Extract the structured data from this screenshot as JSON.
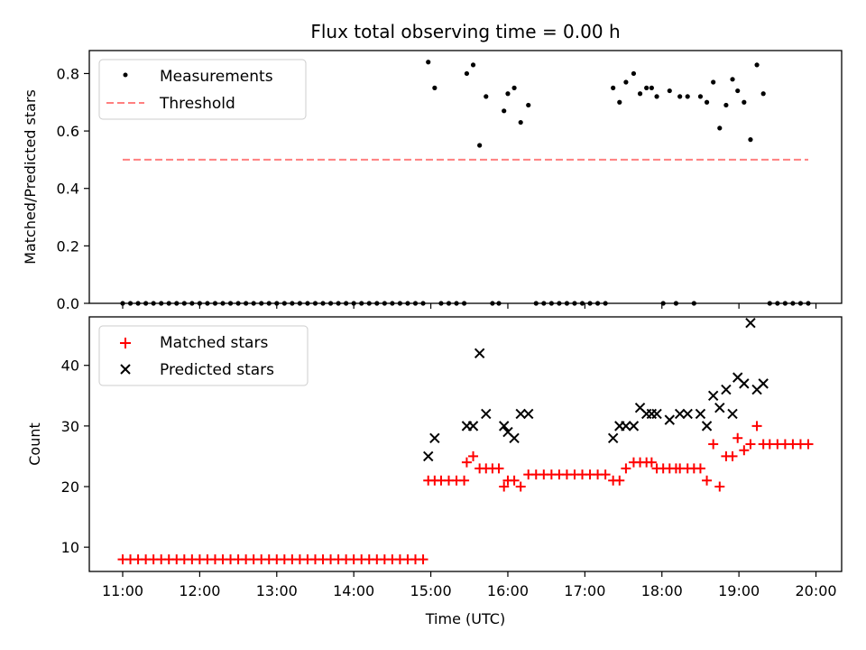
{
  "chart_data": [
    {
      "type": "scatter",
      "title": "Flux total observing time = 0.00 h",
      "xlabel": "",
      "ylabel": "Matched/Predicted stars",
      "xlim": [
        "10:34",
        "20:20"
      ],
      "ylim": [
        0.0,
        0.88
      ],
      "yticks": [
        0.0,
        0.2,
        0.4,
        0.6,
        0.8
      ],
      "ytick_labels": [
        "0.0",
        "0.2",
        "0.4",
        "0.6",
        "0.8"
      ],
      "xticks": [
        "11:00",
        "12:00",
        "13:00",
        "14:00",
        "15:00",
        "16:00",
        "17:00",
        "18:00",
        "19:00",
        "20:00"
      ],
      "grid": false,
      "legend": {
        "position": "top-left",
        "entries": [
          "Measurements",
          "Threshold"
        ]
      },
      "threshold": {
        "name": "Threshold",
        "value": 0.5,
        "x_range": [
          "11:00",
          "19:54"
        ],
        "color": "#ff7f7f"
      },
      "series": [
        {
          "name": "Measurements",
          "color": "#000000",
          "points": [
            [
              "11:00",
              0
            ],
            [
              "11:06",
              0
            ],
            [
              "11:12",
              0
            ],
            [
              "11:18",
              0
            ],
            [
              "11:24",
              0
            ],
            [
              "11:30",
              0
            ],
            [
              "11:36",
              0
            ],
            [
              "11:42",
              0
            ],
            [
              "11:48",
              0
            ],
            [
              "11:54",
              0
            ],
            [
              "12:00",
              0
            ],
            [
              "12:06",
              0
            ],
            [
              "12:12",
              0
            ],
            [
              "12:18",
              0
            ],
            [
              "12:24",
              0
            ],
            [
              "12:30",
              0
            ],
            [
              "12:36",
              0
            ],
            [
              "12:42",
              0
            ],
            [
              "12:48",
              0
            ],
            [
              "12:54",
              0
            ],
            [
              "13:00",
              0
            ],
            [
              "13:06",
              0
            ],
            [
              "13:12",
              0
            ],
            [
              "13:18",
              0
            ],
            [
              "13:24",
              0
            ],
            [
              "13:30",
              0
            ],
            [
              "13:36",
              0
            ],
            [
              "13:42",
              0
            ],
            [
              "13:48",
              0
            ],
            [
              "13:54",
              0
            ],
            [
              "14:00",
              0
            ],
            [
              "14:06",
              0
            ],
            [
              "14:12",
              0
            ],
            [
              "14:18",
              0
            ],
            [
              "14:24",
              0
            ],
            [
              "14:30",
              0
            ],
            [
              "14:36",
              0
            ],
            [
              "14:42",
              0
            ],
            [
              "14:48",
              0
            ],
            [
              "14:54",
              0
            ],
            [
              "14:58",
              0.84
            ],
            [
              "15:03",
              0.75
            ],
            [
              "15:08",
              0
            ],
            [
              "15:14",
              0
            ],
            [
              "15:20",
              0
            ],
            [
              "15:26",
              0
            ],
            [
              "15:28",
              0.8
            ],
            [
              "15:33",
              0.83
            ],
            [
              "15:38",
              0.55
            ],
            [
              "15:43",
              0.72
            ],
            [
              "15:48",
              0
            ],
            [
              "15:53",
              0
            ],
            [
              "15:57",
              0.67
            ],
            [
              "16:00",
              0.73
            ],
            [
              "16:05",
              0.75
            ],
            [
              "16:10",
              0.63
            ],
            [
              "16:16",
              0.69
            ],
            [
              "16:22",
              0
            ],
            [
              "16:28",
              0
            ],
            [
              "16:34",
              0
            ],
            [
              "16:40",
              0
            ],
            [
              "16:46",
              0
            ],
            [
              "16:52",
              0
            ],
            [
              "16:58",
              0
            ],
            [
              "17:04",
              0
            ],
            [
              "17:10",
              0
            ],
            [
              "17:16",
              0
            ],
            [
              "17:22",
              0.75
            ],
            [
              "17:27",
              0.7
            ],
            [
              "17:32",
              0.77
            ],
            [
              "17:38",
              0.8
            ],
            [
              "17:43",
              0.73
            ],
            [
              "17:48",
              0.75
            ],
            [
              "17:52",
              0.75
            ],
            [
              "17:56",
              0.72
            ],
            [
              "18:01",
              0
            ],
            [
              "18:06",
              0.74
            ],
            [
              "18:11",
              0
            ],
            [
              "18:14",
              0.72
            ],
            [
              "18:20",
              0.72
            ],
            [
              "18:25",
              0
            ],
            [
              "18:30",
              0.72
            ],
            [
              "18:35",
              0.7
            ],
            [
              "18:40",
              0.77
            ],
            [
              "18:45",
              0.61
            ],
            [
              "18:50",
              0.69
            ],
            [
              "18:55",
              0.78
            ],
            [
              "18:59",
              0.74
            ],
            [
              "19:04",
              0.7
            ],
            [
              "19:09",
              0.57
            ],
            [
              "19:14",
              0.83
            ],
            [
              "19:19",
              0.73
            ],
            [
              "19:24",
              0
            ],
            [
              "19:30",
              0
            ],
            [
              "19:36",
              0
            ],
            [
              "19:42",
              0
            ],
            [
              "19:48",
              0
            ],
            [
              "19:54",
              0
            ]
          ]
        }
      ]
    },
    {
      "type": "scatter",
      "title": "",
      "xlabel": "Time (UTC)",
      "ylabel": "Count",
      "xlim": [
        "10:34",
        "20:20"
      ],
      "ylim": [
        6.0,
        48.0
      ],
      "yticks": [
        10,
        20,
        30,
        40
      ],
      "ytick_labels": [
        "10",
        "20",
        "30",
        "40"
      ],
      "xticks": [
        "11:00",
        "12:00",
        "13:00",
        "14:00",
        "15:00",
        "16:00",
        "17:00",
        "18:00",
        "19:00",
        "20:00"
      ],
      "xtick_labels": [
        "11:00",
        "12:00",
        "13:00",
        "14:00",
        "15:00",
        "16:00",
        "17:00",
        "18:00",
        "19:00",
        "20:00"
      ],
      "grid": false,
      "legend": {
        "position": "top-left",
        "entries": [
          "Matched stars",
          "Predicted stars"
        ]
      },
      "series": [
        {
          "name": "Matched stars",
          "marker": "plus",
          "color": "#ff0000",
          "points": [
            [
              "11:00",
              8
            ],
            [
              "11:06",
              8
            ],
            [
              "11:12",
              8
            ],
            [
              "11:18",
              8
            ],
            [
              "11:24",
              8
            ],
            [
              "11:30",
              8
            ],
            [
              "11:36",
              8
            ],
            [
              "11:42",
              8
            ],
            [
              "11:48",
              8
            ],
            [
              "11:54",
              8
            ],
            [
              "12:00",
              8
            ],
            [
              "12:06",
              8
            ],
            [
              "12:12",
              8
            ],
            [
              "12:18",
              8
            ],
            [
              "12:24",
              8
            ],
            [
              "12:30",
              8
            ],
            [
              "12:36",
              8
            ],
            [
              "12:42",
              8
            ],
            [
              "12:48",
              8
            ],
            [
              "12:54",
              8
            ],
            [
              "13:00",
              8
            ],
            [
              "13:06",
              8
            ],
            [
              "13:12",
              8
            ],
            [
              "13:18",
              8
            ],
            [
              "13:24",
              8
            ],
            [
              "13:30",
              8
            ],
            [
              "13:36",
              8
            ],
            [
              "13:42",
              8
            ],
            [
              "13:48",
              8
            ],
            [
              "13:54",
              8
            ],
            [
              "14:00",
              8
            ],
            [
              "14:06",
              8
            ],
            [
              "14:12",
              8
            ],
            [
              "14:18",
              8
            ],
            [
              "14:24",
              8
            ],
            [
              "14:30",
              8
            ],
            [
              "14:36",
              8
            ],
            [
              "14:42",
              8
            ],
            [
              "14:48",
              8
            ],
            [
              "14:54",
              8
            ],
            [
              "14:58",
              21
            ],
            [
              "15:03",
              21
            ],
            [
              "15:08",
              21
            ],
            [
              "15:14",
              21
            ],
            [
              "15:20",
              21
            ],
            [
              "15:26",
              21
            ],
            [
              "15:28",
              24
            ],
            [
              "15:33",
              25
            ],
            [
              "15:38",
              23
            ],
            [
              "15:43",
              23
            ],
            [
              "15:48",
              23
            ],
            [
              "15:53",
              23
            ],
            [
              "15:57",
              20
            ],
            [
              "16:00",
              21
            ],
            [
              "16:05",
              21
            ],
            [
              "16:10",
              20
            ],
            [
              "16:16",
              22
            ],
            [
              "16:22",
              22
            ],
            [
              "16:28",
              22
            ],
            [
              "16:34",
              22
            ],
            [
              "16:40",
              22
            ],
            [
              "16:46",
              22
            ],
            [
              "16:52",
              22
            ],
            [
              "16:58",
              22
            ],
            [
              "17:04",
              22
            ],
            [
              "17:10",
              22
            ],
            [
              "17:16",
              22
            ],
            [
              "17:22",
              21
            ],
            [
              "17:27",
              21
            ],
            [
              "17:32",
              23
            ],
            [
              "17:38",
              24
            ],
            [
              "17:43",
              24
            ],
            [
              "17:48",
              24
            ],
            [
              "17:52",
              24
            ],
            [
              "17:56",
              23
            ],
            [
              "18:01",
              23
            ],
            [
              "18:06",
              23
            ],
            [
              "18:11",
              23
            ],
            [
              "18:14",
              23
            ],
            [
              "18:20",
              23
            ],
            [
              "18:25",
              23
            ],
            [
              "18:30",
              23
            ],
            [
              "18:35",
              21
            ],
            [
              "18:40",
              27
            ],
            [
              "18:45",
              20
            ],
            [
              "18:50",
              25
            ],
            [
              "18:55",
              25
            ],
            [
              "18:59",
              28
            ],
            [
              "19:04",
              26
            ],
            [
              "19:09",
              27
            ],
            [
              "19:14",
              30
            ],
            [
              "19:19",
              27
            ],
            [
              "19:24",
              27
            ],
            [
              "19:30",
              27
            ],
            [
              "19:36",
              27
            ],
            [
              "19:42",
              27
            ],
            [
              "19:48",
              27
            ],
            [
              "19:54",
              27
            ]
          ]
        },
        {
          "name": "Predicted stars",
          "marker": "x",
          "color": "#000000",
          "points": [
            [
              "14:58",
              25
            ],
            [
              "15:03",
              28
            ],
            [
              "15:28",
              30
            ],
            [
              "15:33",
              30
            ],
            [
              "15:38",
              42
            ],
            [
              "15:43",
              32
            ],
            [
              "15:57",
              30
            ],
            [
              "16:00",
              29
            ],
            [
              "16:05",
              28
            ],
            [
              "16:10",
              32
            ],
            [
              "16:16",
              32
            ],
            [
              "17:22",
              28
            ],
            [
              "17:27",
              30
            ],
            [
              "17:32",
              30
            ],
            [
              "17:38",
              30
            ],
            [
              "17:43",
              33
            ],
            [
              "17:48",
              32
            ],
            [
              "17:52",
              32
            ],
            [
              "17:56",
              32
            ],
            [
              "18:06",
              31
            ],
            [
              "18:14",
              32
            ],
            [
              "18:20",
              32
            ],
            [
              "18:30",
              32
            ],
            [
              "18:35",
              30
            ],
            [
              "18:40",
              35
            ],
            [
              "18:45",
              33
            ],
            [
              "18:50",
              36
            ],
            [
              "18:55",
              32
            ],
            [
              "18:59",
              38
            ],
            [
              "19:04",
              37
            ],
            [
              "19:09",
              47
            ],
            [
              "19:14",
              36
            ],
            [
              "19:19",
              37
            ]
          ]
        }
      ]
    }
  ]
}
